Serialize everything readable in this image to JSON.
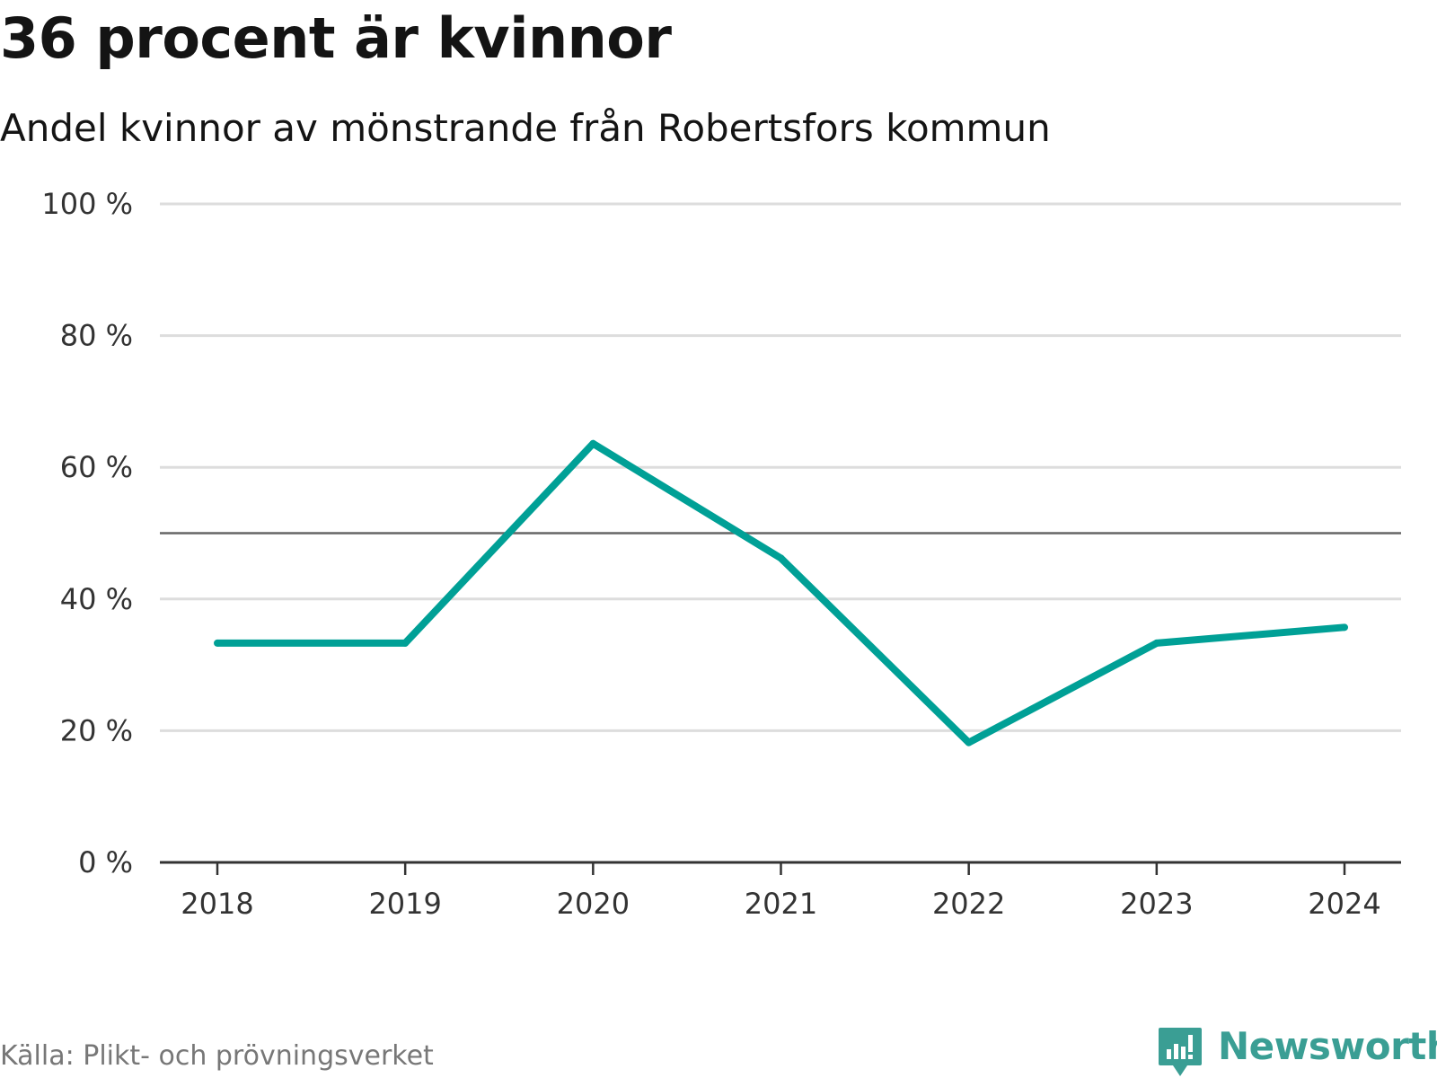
{
  "title": "36 procent är kvinnor",
  "subtitle": "Andel kvinnor av mönstrande från Robertsfors kommun",
  "source": "Källa: Plikt- och prövningsverket",
  "brand": {
    "name": "Newsworthy",
    "icon": "newsworthy-chart-icon",
    "color": "#3a9e94"
  },
  "colors": {
    "series": "#00a096",
    "grid": "#dddddd",
    "reference": "#666666",
    "axis": "#333333"
  },
  "chart_data": {
    "type": "line",
    "title": "36 procent är kvinnor",
    "subtitle": "Andel kvinnor av mönstrande från Robertsfors kommun",
    "xlabel": "",
    "ylabel": "",
    "categories": [
      "2018",
      "2019",
      "2020",
      "2021",
      "2022",
      "2023",
      "2024"
    ],
    "series": [
      {
        "name": "Andel kvinnor",
        "values": [
          33.3,
          33.3,
          63.6,
          46.2,
          18.2,
          33.3,
          35.7
        ]
      }
    ],
    "ylim": [
      0,
      100
    ],
    "yticks": [
      0,
      20,
      40,
      60,
      80,
      100
    ],
    "ytick_labels": [
      "0 %",
      "20 %",
      "40 %",
      "60 %",
      "80 %",
      "100 %"
    ],
    "reference_line": 50,
    "grid": true,
    "legend": "none"
  }
}
